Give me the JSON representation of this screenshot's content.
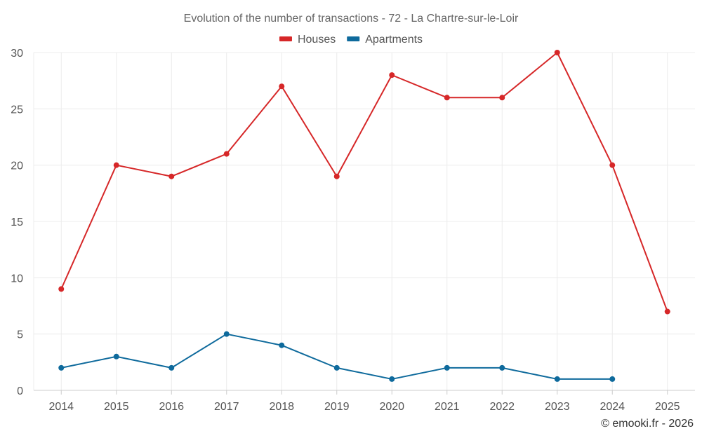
{
  "chart_data": {
    "type": "line",
    "title": "Evolution of the number of transactions - 72 - La Chartre-sur-le-Loir",
    "categories": [
      "2014",
      "2015",
      "2016",
      "2017",
      "2018",
      "2019",
      "2020",
      "2021",
      "2022",
      "2023",
      "2024",
      "2025"
    ],
    "ylim": [
      0,
      30
    ],
    "yticks": [
      0,
      5,
      10,
      15,
      20,
      25,
      30
    ],
    "grid": true,
    "legend_position": "top-center",
    "series": [
      {
        "name": "Houses",
        "color": "#d62728",
        "values": [
          9,
          20,
          19,
          21,
          27,
          19,
          28,
          26,
          26,
          30,
          20,
          7
        ]
      },
      {
        "name": "Apartments",
        "color": "#0e6a9c",
        "values": [
          2,
          3,
          2,
          5,
          4,
          2,
          1,
          2,
          2,
          1,
          1,
          null
        ]
      }
    ],
    "credit": "© emooki.fr - 2026"
  }
}
